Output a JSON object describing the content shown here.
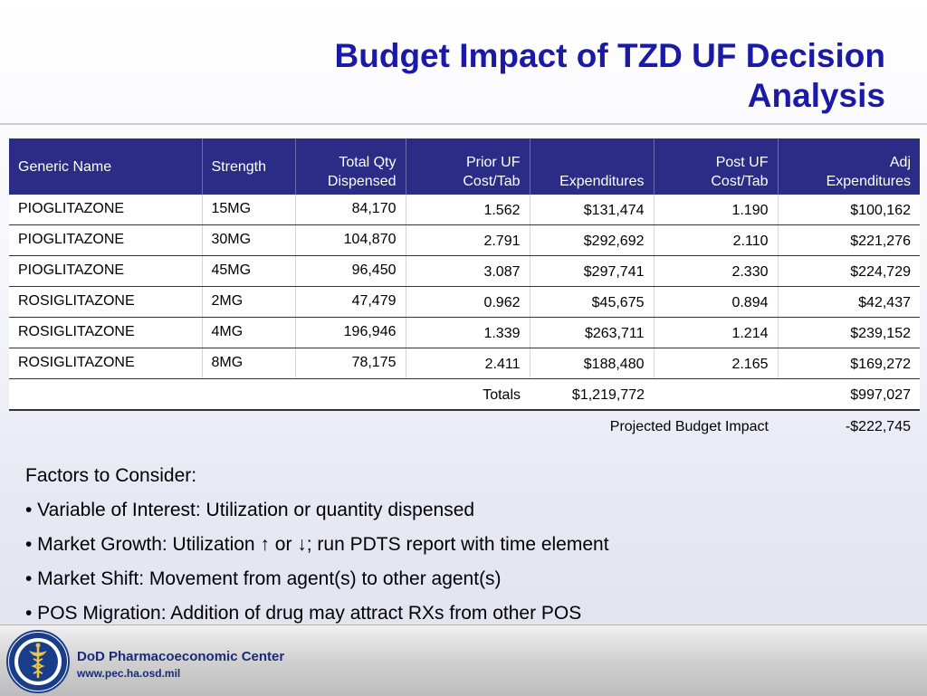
{
  "title_line1": "Budget Impact of TZD UF Decision",
  "title_line2": "Analysis",
  "table": {
    "headers": {
      "generic_name": "Generic Name",
      "strength": "Strength",
      "total_qty_l1": "Total Qty",
      "total_qty_l2": "Dispensed",
      "prior_l1": "Prior UF",
      "prior_l2": "Cost/Tab",
      "expenditures": "Expenditures",
      "post_l1": "Post UF",
      "post_l2": "Cost/Tab",
      "adj_l1": "Adj",
      "adj_l2": "Expenditures"
    },
    "rows": [
      {
        "name": "PIOGLITAZONE",
        "strength": "15MG",
        "qty": "84,170",
        "prior": "1.562",
        "exp": "$131,474",
        "post": "1.190",
        "adj": "$100,162"
      },
      {
        "name": "PIOGLITAZONE",
        "strength": "30MG",
        "qty": "104,870",
        "prior": "2.791",
        "exp": "$292,692",
        "post": "2.110",
        "adj": "$221,276"
      },
      {
        "name": "PIOGLITAZONE",
        "strength": "45MG",
        "qty": "96,450",
        "prior": "3.087",
        "exp": "$297,741",
        "post": "2.330",
        "adj": "$224,729"
      },
      {
        "name": "ROSIGLITAZONE",
        "strength": "2MG",
        "qty": "47,479",
        "prior": "0.962",
        "exp": "$45,675",
        "post": "0.894",
        "adj": "$42,437"
      },
      {
        "name": "ROSIGLITAZONE",
        "strength": "4MG",
        "qty": "196,946",
        "prior": "1.339",
        "exp": "$263,711",
        "post": "1.214",
        "adj": "$239,152"
      },
      {
        "name": "ROSIGLITAZONE",
        "strength": "8MG",
        "qty": "78,175",
        "prior": "2.411",
        "exp": "$188,480",
        "post": "2.165",
        "adj": "$169,272"
      }
    ],
    "totals_label": "Totals",
    "totals_exp": "$1,219,772",
    "totals_adj": "$997,027",
    "impact_label": "Projected Budget Impact",
    "impact_value": "-$222,745"
  },
  "factors": [
    "Factors to Consider:",
    "• Variable of Interest: Utilization or quantity dispensed",
    "• Market Growth: Utilization ↑ or ↓; run PDTS report with time element",
    "• Market Shift: Movement from agent(s) to other agent(s)",
    "• POS Migration: Addition of drug may attract RXs from other POS"
  ],
  "footer": {
    "org": "DoD Pharmacoeconomic Center",
    "url": "www.pec.ha.osd.mil",
    "logo_icon": "caduceus-seal-icon"
  },
  "colors": {
    "title": "#1a1aa6",
    "header_bg": "#2a2c85",
    "footer_text": "#1a2a7a"
  }
}
